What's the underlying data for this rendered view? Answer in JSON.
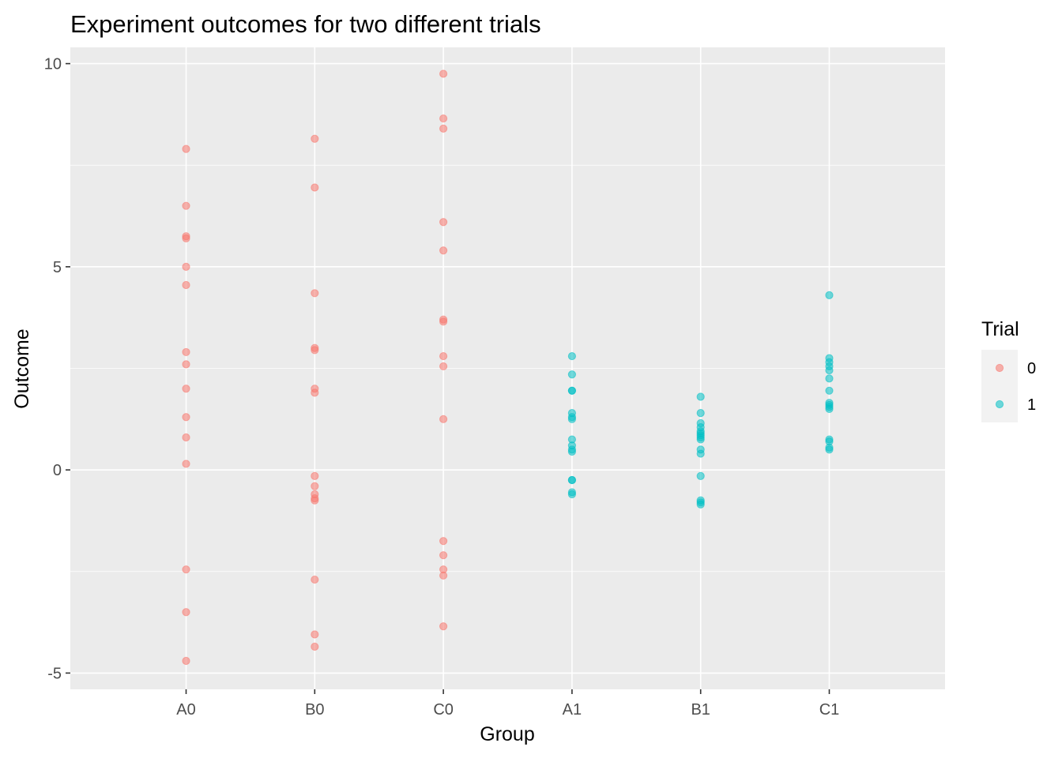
{
  "chart_data": {
    "type": "scatter",
    "title": "Experiment outcomes for two different trials",
    "xlabel": "Group",
    "ylabel": "Outcome",
    "categories": [
      "A0",
      "B0",
      "C0",
      "A1",
      "B1",
      "C1"
    ],
    "ylim": [
      -5.4,
      10.4
    ],
    "yticks": [
      -5,
      0,
      5,
      10
    ],
    "grid": true,
    "legend": {
      "title": "Trial",
      "placement": "right",
      "entries": [
        {
          "label": "0",
          "color": "#F8766D"
        },
        {
          "label": "1",
          "color": "#00BFC4"
        }
      ]
    },
    "series": [
      {
        "name": "0",
        "color": "#F8766D",
        "points": [
          {
            "x": "A0",
            "y": 7.9
          },
          {
            "x": "A0",
            "y": 6.5
          },
          {
            "x": "A0",
            "y": 5.75
          },
          {
            "x": "A0",
            "y": 5.7
          },
          {
            "x": "A0",
            "y": 5.0
          },
          {
            "x": "A0",
            "y": 4.55
          },
          {
            "x": "A0",
            "y": 2.9
          },
          {
            "x": "A0",
            "y": 2.6
          },
          {
            "x": "A0",
            "y": 2.0
          },
          {
            "x": "A0",
            "y": 1.3
          },
          {
            "x": "A0",
            "y": 0.8
          },
          {
            "x": "A0",
            "y": 0.15
          },
          {
            "x": "A0",
            "y": -2.45
          },
          {
            "x": "A0",
            "y": -3.5
          },
          {
            "x": "A0",
            "y": -4.7
          },
          {
            "x": "B0",
            "y": 8.15
          },
          {
            "x": "B0",
            "y": 6.95
          },
          {
            "x": "B0",
            "y": 4.35
          },
          {
            "x": "B0",
            "y": 3.0
          },
          {
            "x": "B0",
            "y": 2.95
          },
          {
            "x": "B0",
            "y": 2.0
          },
          {
            "x": "B0",
            "y": 1.9
          },
          {
            "x": "B0",
            "y": -0.15
          },
          {
            "x": "B0",
            "y": -0.4
          },
          {
            "x": "B0",
            "y": -0.6
          },
          {
            "x": "B0",
            "y": -0.7
          },
          {
            "x": "B0",
            "y": -0.75
          },
          {
            "x": "B0",
            "y": -2.7
          },
          {
            "x": "B0",
            "y": -4.05
          },
          {
            "x": "B0",
            "y": -4.35
          },
          {
            "x": "C0",
            "y": 9.75
          },
          {
            "x": "C0",
            "y": 8.65
          },
          {
            "x": "C0",
            "y": 8.4
          },
          {
            "x": "C0",
            "y": 6.1
          },
          {
            "x": "C0",
            "y": 5.4
          },
          {
            "x": "C0",
            "y": 3.7
          },
          {
            "x": "C0",
            "y": 3.65
          },
          {
            "x": "C0",
            "y": 2.8
          },
          {
            "x": "C0",
            "y": 2.55
          },
          {
            "x": "C0",
            "y": 1.25
          },
          {
            "x": "C0",
            "y": -1.75
          },
          {
            "x": "C0",
            "y": -2.1
          },
          {
            "x": "C0",
            "y": -2.45
          },
          {
            "x": "C0",
            "y": -2.6
          },
          {
            "x": "C0",
            "y": -3.85
          }
        ]
      },
      {
        "name": "1",
        "color": "#00BFC4",
        "points": [
          {
            "x": "A1",
            "y": 2.8
          },
          {
            "x": "A1",
            "y": 2.35
          },
          {
            "x": "A1",
            "y": 1.95
          },
          {
            "x": "A1",
            "y": 1.95
          },
          {
            "x": "A1",
            "y": 1.4
          },
          {
            "x": "A1",
            "y": 1.3
          },
          {
            "x": "A1",
            "y": 1.25
          },
          {
            "x": "A1",
            "y": 0.75
          },
          {
            "x": "A1",
            "y": 0.6
          },
          {
            "x": "A1",
            "y": 0.5
          },
          {
            "x": "A1",
            "y": 0.45
          },
          {
            "x": "A1",
            "y": -0.25
          },
          {
            "x": "A1",
            "y": -0.25
          },
          {
            "x": "A1",
            "y": -0.55
          },
          {
            "x": "A1",
            "y": -0.6
          },
          {
            "x": "B1",
            "y": 1.8
          },
          {
            "x": "B1",
            "y": 1.4
          },
          {
            "x": "B1",
            "y": 1.15
          },
          {
            "x": "B1",
            "y": 1.05
          },
          {
            "x": "B1",
            "y": 0.95
          },
          {
            "x": "B1",
            "y": 0.9
          },
          {
            "x": "B1",
            "y": 0.85
          },
          {
            "x": "B1",
            "y": 0.8
          },
          {
            "x": "B1",
            "y": 0.75
          },
          {
            "x": "B1",
            "y": 0.5
          },
          {
            "x": "B1",
            "y": 0.4
          },
          {
            "x": "B1",
            "y": -0.15
          },
          {
            "x": "B1",
            "y": -0.75
          },
          {
            "x": "B1",
            "y": -0.8
          },
          {
            "x": "B1",
            "y": -0.85
          },
          {
            "x": "C1",
            "y": 4.3
          },
          {
            "x": "C1",
            "y": 2.75
          },
          {
            "x": "C1",
            "y": 2.65
          },
          {
            "x": "C1",
            "y": 2.55
          },
          {
            "x": "C1",
            "y": 2.45
          },
          {
            "x": "C1",
            "y": 2.25
          },
          {
            "x": "C1",
            "y": 1.95
          },
          {
            "x": "C1",
            "y": 1.65
          },
          {
            "x": "C1",
            "y": 1.6
          },
          {
            "x": "C1",
            "y": 1.55
          },
          {
            "x": "C1",
            "y": 1.5
          },
          {
            "x": "C1",
            "y": 0.75
          },
          {
            "x": "C1",
            "y": 0.7
          },
          {
            "x": "C1",
            "y": 0.55
          },
          {
            "x": "C1",
            "y": 0.5
          }
        ]
      }
    ]
  }
}
